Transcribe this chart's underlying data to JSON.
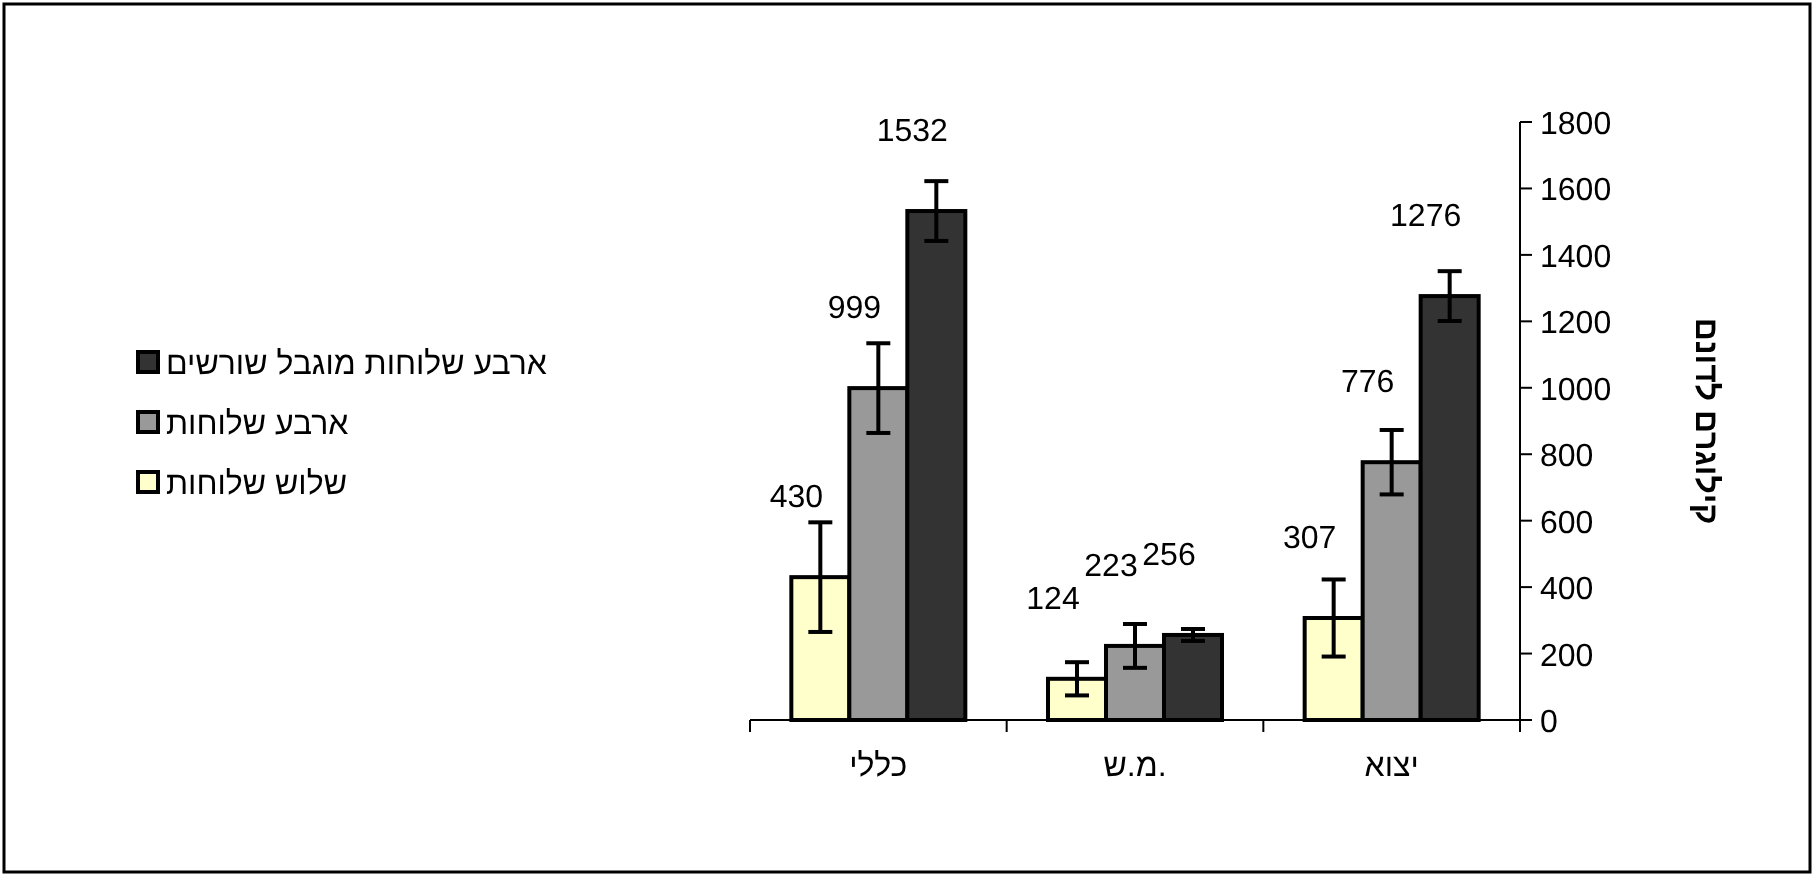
{
  "chart_data": {
    "type": "bar",
    "categories": [
      "כללי",
      "מ.ש.",
      "יצוא"
    ],
    "ylabel": "קילוגרם לדונם",
    "ylim": [
      0,
      1800
    ],
    "yticks": [
      0,
      200,
      400,
      600,
      800,
      1000,
      1200,
      1400,
      1600,
      1800
    ],
    "series": [
      {
        "name": "שלוש שלוחות",
        "color": "#ffffcc",
        "values": [
          430,
          124,
          307
        ],
        "errors": [
          165,
          50,
          116
        ]
      },
      {
        "name": "ארבע שלוחות ",
        "color": "#999999",
        "values": [
          999,
          223,
          776
        ],
        "errors": [
          135,
          66,
          97
        ]
      },
      {
        "name": "ארבע שלוחות מוגבל שורשים",
        "color": "#333333",
        "values": [
          1532,
          256,
          1276
        ],
        "errors": [
          90,
          18,
          75
        ]
      }
    ],
    "data_labels": true,
    "legend": "left",
    "grid": false
  }
}
